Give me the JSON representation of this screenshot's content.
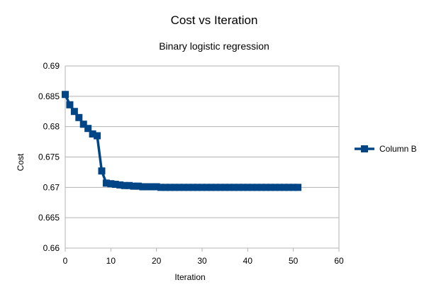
{
  "chart_data": {
    "type": "line",
    "title": "Cost vs Iteration",
    "subtitle": "Binary logistic regression",
    "xlabel": "Iteration",
    "ylabel": "Cost",
    "xlim": [
      0,
      60
    ],
    "ylim": [
      0.66,
      0.69
    ],
    "x_ticks": [
      0,
      10,
      20,
      30,
      40,
      50,
      60
    ],
    "y_ticks": [
      0.66,
      0.665,
      0.67,
      0.675,
      0.68,
      0.685,
      0.69
    ],
    "y_tick_labels": [
      "0.66",
      "0.665",
      "0.67",
      "0.675",
      "0.68",
      "0.685",
      "0.69"
    ],
    "grid": "horizontal",
    "legend_position": "right",
    "series": [
      {
        "name": "Column B",
        "color": "#004586",
        "marker": "square",
        "x": [
          0,
          1,
          2,
          3,
          4,
          5,
          6,
          7,
          8,
          9,
          10,
          11,
          12,
          13,
          14,
          15,
          16,
          17,
          18,
          19,
          20,
          21,
          22,
          23,
          24,
          25,
          26,
          27,
          28,
          29,
          30,
          31,
          32,
          33,
          34,
          35,
          36,
          37,
          38,
          39,
          40,
          41,
          42,
          43,
          44,
          45,
          46,
          47,
          48,
          49,
          50,
          51
        ],
        "values": [
          0.6853,
          0.6836,
          0.6825,
          0.6815,
          0.6804,
          0.6797,
          0.6788,
          0.6785,
          0.6727,
          0.6707,
          0.6706,
          0.6705,
          0.6704,
          0.6703,
          0.6703,
          0.6702,
          0.6702,
          0.6701,
          0.6701,
          0.6701,
          0.6701,
          0.67,
          0.67,
          0.67,
          0.67,
          0.67,
          0.67,
          0.67,
          0.67,
          0.67,
          0.67,
          0.67,
          0.67,
          0.67,
          0.67,
          0.67,
          0.67,
          0.67,
          0.67,
          0.67,
          0.67,
          0.67,
          0.67,
          0.67,
          0.67,
          0.67,
          0.67,
          0.67,
          0.67,
          0.67,
          0.67,
          0.67
        ]
      }
    ]
  }
}
